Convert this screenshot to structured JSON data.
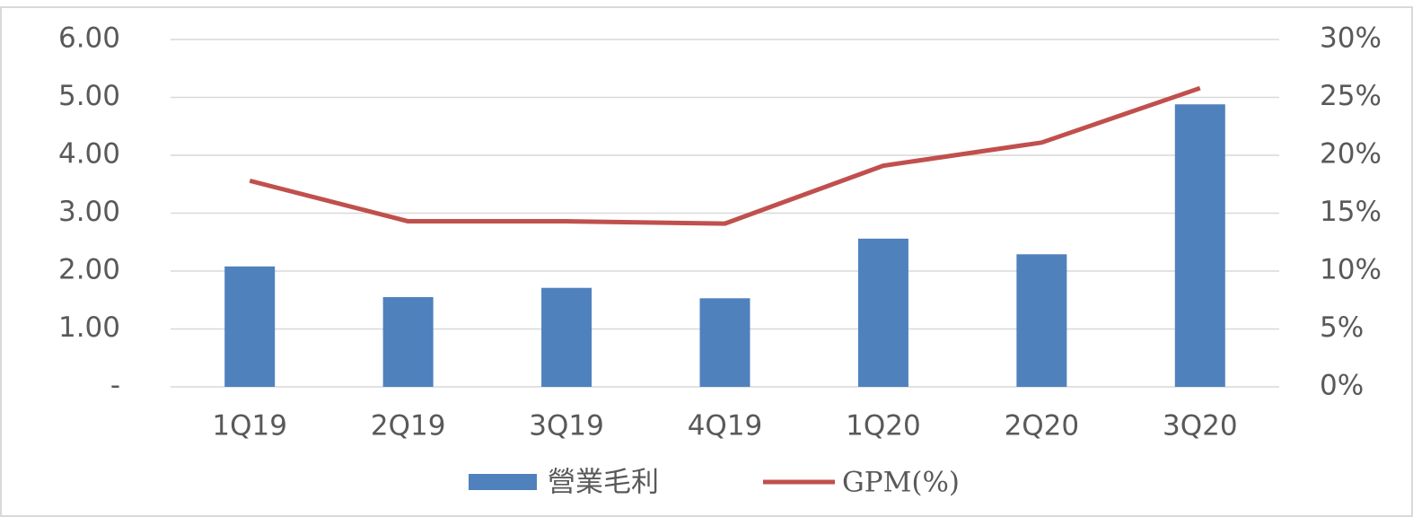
{
  "chart_data": {
    "type": "bar",
    "categories": [
      "1Q19",
      "2Q19",
      "3Q19",
      "4Q19",
      "1Q20",
      "2Q20",
      "3Q20"
    ],
    "series": [
      {
        "name": "營業毛利",
        "type": "bar",
        "color": "#4f81bd",
        "values": [
          2.08,
          1.55,
          1.71,
          1.53,
          2.56,
          2.29,
          4.88
        ]
      },
      {
        "name": "GPM(%)",
        "type": "line",
        "axis": "y2",
        "color": "#c0504d",
        "values": [
          17.8,
          14.3,
          14.3,
          14.1,
          19.1,
          21.1,
          25.8
        ]
      }
    ],
    "ylim": [
      0,
      6
    ],
    "yticks": [
      {
        "value": 0,
        "label": "-"
      },
      {
        "value": 1,
        "label": "1.00"
      },
      {
        "value": 2,
        "label": "2.00"
      },
      {
        "value": 3,
        "label": "3.00"
      },
      {
        "value": 4,
        "label": "4.00"
      },
      {
        "value": 5,
        "label": "5.00"
      },
      {
        "value": 6,
        "label": "6.00"
      }
    ],
    "y2lim": [
      0,
      30
    ],
    "y2ticks": [
      {
        "value": 0,
        "label": "0%"
      },
      {
        "value": 5,
        "label": "5%"
      },
      {
        "value": 10,
        "label": "10%"
      },
      {
        "value": 15,
        "label": "15%"
      },
      {
        "value": 20,
        "label": "20%"
      },
      {
        "value": 25,
        "label": "25%"
      },
      {
        "value": 30,
        "label": "30%"
      }
    ],
    "grid": true,
    "legend": "bottom"
  }
}
